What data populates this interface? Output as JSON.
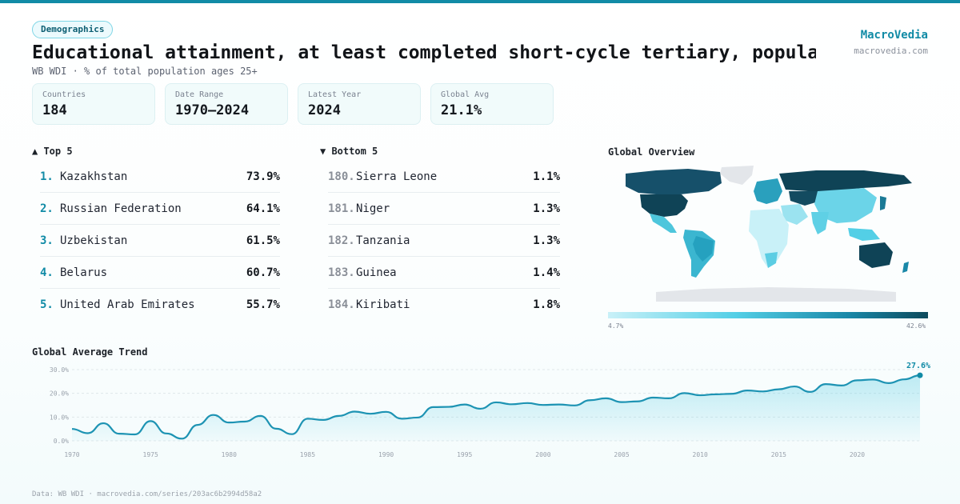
{
  "header": {
    "badge": "Demographics",
    "title": "Educational attainment, at least completed short-cycle tertiary, populat…",
    "subtitle": "WB WDI · % of total population ages 25+",
    "brand_name": "MacroVedia",
    "brand_url": "macrovedia.com"
  },
  "stats": [
    {
      "label": "Countries",
      "value": "184"
    },
    {
      "label": "Date Range",
      "value": "1970–2024"
    },
    {
      "label": "Latest Year",
      "value": "2024"
    },
    {
      "label": "Global Avg",
      "value": "21.1%"
    }
  ],
  "top5": {
    "heading": "▲ Top 5",
    "items": [
      {
        "rank": "1.",
        "name": "Kazakhstan",
        "value": "73.9%"
      },
      {
        "rank": "2.",
        "name": "Russian Federation",
        "value": "64.1%"
      },
      {
        "rank": "3.",
        "name": "Uzbekistan",
        "value": "61.5%"
      },
      {
        "rank": "4.",
        "name": "Belarus",
        "value": "60.7%"
      },
      {
        "rank": "5.",
        "name": "United Arab Emirates",
        "value": "55.7%"
      }
    ]
  },
  "bottom5": {
    "heading": "▼ Bottom 5",
    "items": [
      {
        "rank": "180.",
        "name": "Sierra Leone",
        "value": "1.1%"
      },
      {
        "rank": "181.",
        "name": "Niger",
        "value": "1.3%"
      },
      {
        "rank": "182.",
        "name": "Tanzania",
        "value": "1.3%"
      },
      {
        "rank": "183.",
        "name": "Guinea",
        "value": "1.4%"
      },
      {
        "rank": "184.",
        "name": "Kiribati",
        "value": "1.8%"
      }
    ]
  },
  "map": {
    "title": "Global Overview",
    "legend_min": "4.7%",
    "legend_max": "42.6%",
    "colors": {
      "low": "#c9f1f8",
      "mid": "#53cfe6",
      "high": "#0d4a5c",
      "nodata": "#e3e6ea"
    }
  },
  "trend": {
    "title": "Global Average Trend"
  },
  "footer": "Data: WB WDI · macrovedia.com/series/203ac6b2994d58a2",
  "colors": {
    "accent": "#118ba6",
    "line": "#1d93b3",
    "area": "#5ccde3"
  },
  "chart_data": {
    "type": "area",
    "title": "Global Average Trend",
    "xlabel": "",
    "ylabel": "",
    "ylim": [
      0,
      30
    ],
    "yticks": [
      0,
      10,
      20,
      30
    ],
    "ytick_labels": [
      "0.0%",
      "10.0%",
      "20.0%",
      "30.0%"
    ],
    "xticks": [
      1970,
      1975,
      1980,
      1985,
      1990,
      1995,
      2000,
      2005,
      2010,
      2015,
      2020
    ],
    "grid": true,
    "end_label": "27.6%",
    "x": [
      1970,
      1971,
      1972,
      1973,
      1974,
      1975,
      1976,
      1977,
      1978,
      1979,
      1980,
      1981,
      1982,
      1983,
      1984,
      1985,
      1986,
      1987,
      1988,
      1989,
      1990,
      1991,
      1992,
      1993,
      1994,
      1995,
      1996,
      1997,
      1998,
      1999,
      2000,
      2001,
      2002,
      2003,
      2004,
      2005,
      2006,
      2007,
      2008,
      2009,
      2010,
      2011,
      2012,
      2013,
      2014,
      2015,
      2016,
      2017,
      2018,
      2019,
      2020,
      2021,
      2022,
      2023,
      2024
    ],
    "values": [
      5.0,
      3.2,
      7.4,
      3.0,
      2.7,
      8.3,
      3.1,
      0.9,
      6.7,
      10.9,
      7.7,
      8.1,
      10.5,
      5.1,
      2.8,
      9.3,
      8.8,
      10.5,
      12.3,
      11.4,
      12.2,
      9.3,
      9.8,
      14.2,
      14.3,
      15.3,
      13.5,
      16.2,
      15.4,
      15.9,
      15.1,
      15.3,
      14.9,
      17.1,
      17.9,
      16.3,
      16.6,
      18.2,
      17.9,
      20.1,
      19.2,
      19.6,
      19.8,
      21.2,
      20.8,
      21.7,
      22.9,
      20.6,
      23.9,
      23.3,
      25.5,
      25.8,
      24.3,
      25.9,
      27.6
    ]
  }
}
